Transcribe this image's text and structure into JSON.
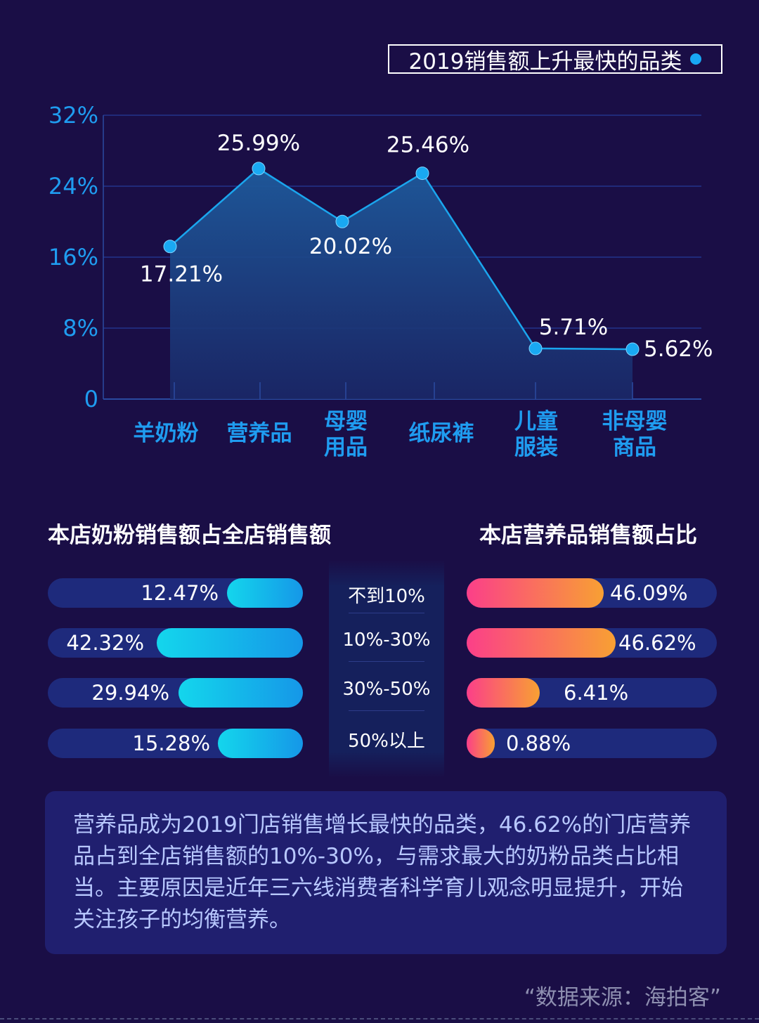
{
  "title": "2019销售额上升最快的品类",
  "chart_data": {
    "type": "area",
    "title": "2019销售额上升最快的品类",
    "categories": [
      "羊奶粉",
      "营养品",
      "母婴\n用品",
      "纸尿裤",
      "儿童\n服装",
      "非母婴\n商品"
    ],
    "values": [
      17.21,
      25.99,
      20.02,
      25.46,
      5.71,
      5.62
    ],
    "value_labels": [
      "17.21%",
      "25.99%",
      "20.02%",
      "25.46%",
      "5.71%",
      "5.62%"
    ],
    "y_ticks": [
      "0",
      "8%",
      "16%",
      "24%",
      "32%"
    ],
    "ylim": [
      0,
      32
    ],
    "grid": true,
    "colors": {
      "line": "#1aa6ee",
      "point": "#19a9f2",
      "axis_text": "#1f9cf0",
      "label": "#ffffff"
    }
  },
  "left_section": {
    "title": "本店奶粉销售额占全店销售额",
    "bars": [
      {
        "label": "12.47%",
        "value": 12.47
      },
      {
        "label": "42.32%",
        "value": 42.32
      },
      {
        "label": "29.94%",
        "value": 29.94
      },
      {
        "label": "15.28%",
        "value": 15.28
      }
    ]
  },
  "right_section": {
    "title": "本店营养品销售额占比",
    "bars": [
      {
        "label": "46.09%",
        "value": 46.09
      },
      {
        "label": "46.62%",
        "value": 46.62
      },
      {
        "label": "6.41%",
        "value": 6.41
      },
      {
        "label": "0.88%",
        "value": 0.88
      }
    ]
  },
  "ranges": [
    "不到10%",
    "10%-30%",
    "30%-50%",
    "50%以上"
  ],
  "summary": "营养品成为2019门店销售增长最快的品类，46.62%的门店营养品占到全店销售额的10%-30%，与需求最大的奶粉品类占比相当。主要原因是近年三六线消费者科学育儿观念明显提升，开始关注孩子的均衡营养。",
  "source": "“数据来源：海拍客”"
}
